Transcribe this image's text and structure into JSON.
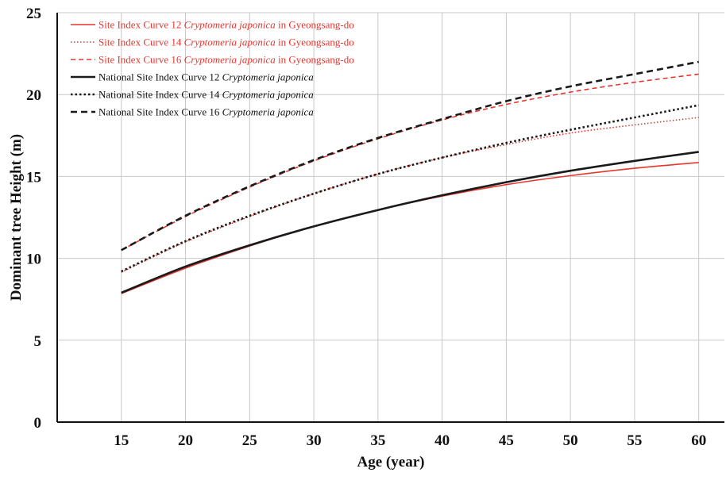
{
  "chart_data": {
    "type": "line",
    "title": "",
    "xlabel": "Age (year)",
    "ylabel": "Dominant tree Height (m)",
    "xlim": [
      10,
      62
    ],
    "ylim": [
      0,
      25
    ],
    "x_ticks": [
      15,
      20,
      25,
      30,
      35,
      40,
      45,
      50,
      55,
      60
    ],
    "y_ticks": [
      0,
      5,
      10,
      15,
      20,
      25
    ],
    "grid": {
      "vertical": true,
      "horizontal": true
    },
    "legend_position": "top-left",
    "x": [
      15,
      20,
      25,
      30,
      35,
      40,
      45,
      50,
      55,
      60
    ],
    "series": [
      {
        "name": "Site Index Curve 12 Cryptomeria japonica in Gyeongsang-do",
        "name_parts": [
          "Site Index Curve 12 ",
          "Cryptomeria japonica",
          " in Gyeongsang-do"
        ],
        "color": "#e8352e",
        "style": "solid",
        "width": 1.6,
        "values": [
          7.85,
          9.4,
          10.75,
          11.95,
          12.95,
          13.8,
          14.5,
          15.05,
          15.5,
          15.85
        ]
      },
      {
        "name": "Site Index Curve 14 Cryptomeria japonica in Gyeongsang-do",
        "name_parts": [
          "Site Index Curve 14 ",
          "Cryptomeria japonica",
          " in Gyeongsang-do"
        ],
        "color": "#e8352e",
        "style": "dotted",
        "width": 1.6,
        "values": [
          9.15,
          11.0,
          12.55,
          13.95,
          15.15,
          16.15,
          16.95,
          17.65,
          18.15,
          18.6
        ]
      },
      {
        "name": "Site Index Curve 16 Cryptomeria japonica in Gyeongsang-do",
        "name_parts": [
          "Site Index Curve 16 ",
          "Cryptomeria japonica",
          " in Gyeongsang-do"
        ],
        "color": "#e8352e",
        "style": "dashed",
        "width": 1.6,
        "values": [
          10.5,
          12.55,
          14.35,
          15.95,
          17.3,
          18.45,
          19.4,
          20.15,
          20.75,
          21.25
        ]
      },
      {
        "name": "National Site Index Curve 12 Cryptomeria japonica",
        "name_parts": [
          "National Site Index Curve 12 ",
          "Cryptomeria japonica",
          ""
        ],
        "color": "#1a1a1a",
        "style": "solid",
        "width": 2.6,
        "values": [
          7.9,
          9.5,
          10.8,
          11.95,
          12.95,
          13.85,
          14.65,
          15.35,
          15.95,
          16.5
        ]
      },
      {
        "name": "National Site Index Curve 14 Cryptomeria japonica",
        "name_parts": [
          "National Site Index Curve 14 ",
          "Cryptomeria japonica",
          ""
        ],
        "color": "#1a1a1a",
        "style": "dotted",
        "width": 2.6,
        "values": [
          9.2,
          11.05,
          12.6,
          13.95,
          15.15,
          16.15,
          17.05,
          17.85,
          18.6,
          19.35
        ]
      },
      {
        "name": "National Site Index Curve 16 Cryptomeria japonica",
        "name_parts": [
          "National Site Index Curve 16 ",
          "Cryptomeria japonica",
          ""
        ],
        "color": "#1a1a1a",
        "style": "dashed",
        "width": 2.6,
        "values": [
          10.5,
          12.6,
          14.4,
          16.0,
          17.35,
          18.5,
          19.6,
          20.5,
          21.25,
          22.0
        ]
      }
    ]
  }
}
